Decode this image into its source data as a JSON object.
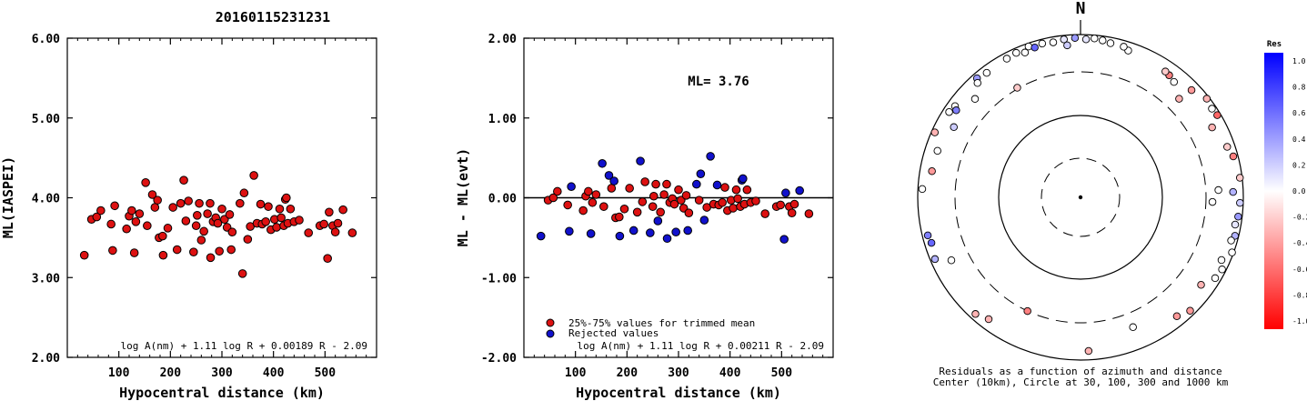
{
  "title": "20160115231231",
  "chart_data": [
    {
      "type": "scatter",
      "name": "ml-iaspei-vs-distance",
      "xlabel": "Hypocentral distance (km)",
      "ylabel": "ML(IASPEI)",
      "xlim": [
        0,
        600
      ],
      "ylim": [
        2.0,
        6.0
      ],
      "xticks": [
        "100",
        "200",
        "300",
        "400",
        "500"
      ],
      "xtick_values": [
        100,
        200,
        300,
        400,
        500
      ],
      "yticks": [
        "2.00",
        "3.00",
        "4.00",
        "5.00",
        "6.00"
      ],
      "ytick_values": [
        2.0,
        3.0,
        4.0,
        5.0,
        6.0
      ],
      "formula": "log A(nm) + 1.11 log R + 0.00189 R - 2.09",
      "marker_color": "#dd1111",
      "points": [
        [
          33,
          3.28
        ],
        [
          47,
          3.73
        ],
        [
          57,
          3.76
        ],
        [
          65,
          3.84
        ],
        [
          85,
          3.67
        ],
        [
          88,
          3.34
        ],
        [
          92,
          3.9
        ],
        [
          115,
          3.61
        ],
        [
          120,
          3.77
        ],
        [
          125,
          3.84
        ],
        [
          130,
          3.31
        ],
        [
          133,
          3.7
        ],
        [
          140,
          3.8
        ],
        [
          152,
          4.19
        ],
        [
          155,
          3.65
        ],
        [
          165,
          4.04
        ],
        [
          170,
          3.88
        ],
        [
          175,
          3.97
        ],
        [
          178,
          3.5
        ],
        [
          185,
          3.52
        ],
        [
          186,
          3.28
        ],
        [
          195,
          3.62
        ],
        [
          205,
          3.88
        ],
        [
          213,
          3.35
        ],
        [
          220,
          3.93
        ],
        [
          226,
          4.22
        ],
        [
          230,
          3.71
        ],
        [
          235,
          3.96
        ],
        [
          245,
          3.32
        ],
        [
          250,
          3.65
        ],
        [
          252,
          3.78
        ],
        [
          256,
          3.93
        ],
        [
          260,
          3.47
        ],
        [
          265,
          3.58
        ],
        [
          272,
          3.8
        ],
        [
          277,
          3.93
        ],
        [
          278,
          3.25
        ],
        [
          283,
          3.7
        ],
        [
          288,
          3.75
        ],
        [
          292,
          3.68
        ],
        [
          295,
          3.33
        ],
        [
          300,
          3.86
        ],
        [
          305,
          3.73
        ],
        [
          310,
          3.63
        ],
        [
          315,
          3.79
        ],
        [
          318,
          3.35
        ],
        [
          320,
          3.57
        ],
        [
          335,
          3.93
        ],
        [
          340,
          3.05
        ],
        [
          343,
          4.06
        ],
        [
          350,
          3.48
        ],
        [
          355,
          3.64
        ],
        [
          362,
          4.28
        ],
        [
          368,
          3.68
        ],
        [
          375,
          3.92
        ],
        [
          378,
          3.67
        ],
        [
          385,
          3.7
        ],
        [
          390,
          3.89
        ],
        [
          395,
          3.6
        ],
        [
          402,
          3.73
        ],
        [
          406,
          3.63
        ],
        [
          412,
          3.86
        ],
        [
          415,
          3.75
        ],
        [
          420,
          3.65
        ],
        [
          423,
          3.98
        ],
        [
          425,
          4.0
        ],
        [
          428,
          3.68
        ],
        [
          433,
          3.86
        ],
        [
          440,
          3.7
        ],
        [
          450,
          3.72
        ],
        [
          468,
          3.56
        ],
        [
          490,
          3.65
        ],
        [
          498,
          3.67
        ],
        [
          505,
          3.24
        ],
        [
          508,
          3.82
        ],
        [
          515,
          3.65
        ],
        [
          520,
          3.57
        ],
        [
          525,
          3.68
        ],
        [
          535,
          3.85
        ],
        [
          553,
          3.56
        ]
      ]
    },
    {
      "type": "scatter",
      "name": "ml-residual-vs-distance",
      "xlabel": "Hypocentral distance (km)",
      "ylabel": "ML - ML(evt)",
      "xlim": [
        0,
        600
      ],
      "ylim": [
        -2.0,
        2.0
      ],
      "xticks": [
        "100",
        "200",
        "300",
        "400",
        "500"
      ],
      "xtick_values": [
        100,
        200,
        300,
        400,
        500
      ],
      "yticks": [
        "-2.00",
        "-1.00",
        "0.00",
        "1.00",
        "2.00"
      ],
      "ytick_values": [
        -2.0,
        -1.0,
        0.0,
        1.0,
        2.0
      ],
      "annotation": "ML= 3.76",
      "formula": "log A(nm) + 1.11 log R + 0.00211 R - 2.09",
      "legend": [
        {
          "label": "25%-75% values for trimmed mean",
          "color": "#dd1111"
        },
        {
          "label": "Rejected values",
          "color": "#1111cc"
        }
      ],
      "series": [
        {
          "color": "#dd1111",
          "points": [
            [
              47,
              -0.03
            ],
            [
              57,
              0.0
            ],
            [
              65,
              0.08
            ],
            [
              85,
              -0.09
            ],
            [
              115,
              -0.16
            ],
            [
              120,
              0.02
            ],
            [
              125,
              0.08
            ],
            [
              133,
              -0.06
            ],
            [
              140,
              0.04
            ],
            [
              155,
              -0.11
            ],
            [
              170,
              0.12
            ],
            [
              178,
              -0.25
            ],
            [
              185,
              -0.24
            ],
            [
              195,
              -0.14
            ],
            [
              205,
              0.12
            ],
            [
              220,
              -0.18
            ],
            [
              230,
              -0.05
            ],
            [
              235,
              0.2
            ],
            [
              250,
              -0.11
            ],
            [
              252,
              0.02
            ],
            [
              256,
              0.17
            ],
            [
              265,
              -0.18
            ],
            [
              272,
              0.04
            ],
            [
              277,
              0.17
            ],
            [
              283,
              -0.06
            ],
            [
              288,
              -0.01
            ],
            [
              292,
              -0.08
            ],
            [
              300,
              0.1
            ],
            [
              305,
              -0.03
            ],
            [
              310,
              -0.13
            ],
            [
              315,
              0.03
            ],
            [
              320,
              -0.19
            ],
            [
              340,
              -0.03
            ],
            [
              355,
              -0.12
            ],
            [
              368,
              -0.08
            ],
            [
              378,
              -0.09
            ],
            [
              385,
              -0.06
            ],
            [
              390,
              0.13
            ],
            [
              395,
              -0.16
            ],
            [
              402,
              -0.03
            ],
            [
              406,
              -0.13
            ],
            [
              412,
              0.1
            ],
            [
              415,
              -0.01
            ],
            [
              420,
              -0.11
            ],
            [
              428,
              -0.08
            ],
            [
              433,
              0.1
            ],
            [
              440,
              -0.06
            ],
            [
              450,
              -0.04
            ],
            [
              468,
              -0.2
            ],
            [
              490,
              -0.11
            ],
            [
              498,
              -0.09
            ],
            [
              515,
              -0.11
            ],
            [
              520,
              -0.19
            ],
            [
              525,
              -0.08
            ],
            [
              553,
              -0.2
            ]
          ]
        },
        {
          "color": "#1111cc",
          "points": [
            [
              33,
              -0.48
            ],
            [
              88,
              -0.42
            ],
            [
              92,
              0.14
            ],
            [
              130,
              -0.45
            ],
            [
              152,
              0.43
            ],
            [
              165,
              0.28
            ],
            [
              175,
              0.21
            ],
            [
              186,
              -0.48
            ],
            [
              213,
              -0.41
            ],
            [
              226,
              0.46
            ],
            [
              245,
              -0.44
            ],
            [
              260,
              -0.29
            ],
            [
              278,
              -0.51
            ],
            [
              295,
              -0.43
            ],
            [
              318,
              -0.41
            ],
            [
              335,
              0.17
            ],
            [
              343,
              0.3
            ],
            [
              350,
              -0.28
            ],
            [
              362,
              0.52
            ],
            [
              375,
              0.16
            ],
            [
              423,
              0.22
            ],
            [
              425,
              0.24
            ],
            [
              505,
              -0.52
            ],
            [
              508,
              0.06
            ],
            [
              535,
              0.09
            ]
          ]
        }
      ]
    },
    {
      "type": "scatter",
      "name": "azimuth-distance-residuals",
      "top_label": "N",
      "caption_line1": "Residuals as a function of azimuth and distance",
      "caption_line2": "Center (10km), Circle at 30, 100, 300 and 1000 km",
      "rings_km": [
        10,
        30,
        100,
        300,
        1000
      ],
      "colorbar": {
        "title": "Res",
        "labels": [
          "1.0",
          "0.8",
          "0.6",
          "0.4",
          "0.2",
          "0.0",
          "-0.2",
          "-0.4",
          "-0.6",
          "-0.8",
          "-1.0"
        ],
        "top_color": "#0000ff",
        "mid_color": "#ffffff",
        "bottom_color": "#ff0000"
      },
      "stations": [
        {
          "az": 358,
          "dist": 900,
          "res": 0.4
        },
        {
          "az": 2,
          "dist": 860,
          "res": 0.1
        },
        {
          "az": 5,
          "dist": 900,
          "res": 0.0
        },
        {
          "az": 8,
          "dist": 870,
          "res": 0.0
        },
        {
          "az": 11,
          "dist": 830,
          "res": 0.0
        },
        {
          "az": 354,
          "dist": 880,
          "res": 0.1
        },
        {
          "az": 350,
          "dist": 840,
          "res": 0.0
        },
        {
          "az": 346,
          "dist": 870,
          "res": 0.0
        },
        {
          "az": 341,
          "dist": 900,
          "res": 0.0
        },
        {
          "az": 343,
          "dist": 820,
          "res": 0.6
        },
        {
          "az": 339,
          "dist": 780,
          "res": 0.0
        },
        {
          "az": 336,
          "dist": 860,
          "res": 0.0
        },
        {
          "az": 332,
          "dist": 830,
          "res": 0.0
        },
        {
          "az": 355,
          "dist": 720,
          "res": 0.2
        },
        {
          "az": 323,
          "dist": 800,
          "res": 0.0
        },
        {
          "az": 319,
          "dist": 850,
          "res": 0.4
        },
        {
          "az": 318,
          "dist": 750,
          "res": 0.0
        },
        {
          "az": 306,
          "dist": 780,
          "res": 0.0
        },
        {
          "az": 303,
          "dist": 820,
          "res": 0.0
        },
        {
          "az": 305,
          "dist": 700,
          "res": 0.5
        },
        {
          "az": 294,
          "dist": 900,
          "res": -0.3
        },
        {
          "az": 313,
          "dist": 550,
          "res": 0.0
        },
        {
          "az": 299,
          "dist": 560,
          "res": 0.2
        },
        {
          "az": 288,
          "dist": 670,
          "res": 0.0
        },
        {
          "az": 280,
          "dist": 680,
          "res": -0.4
        },
        {
          "az": 273,
          "dist": 870,
          "res": 0.0
        },
        {
          "az": 253,
          "dist": 800,
          "res": 0.6
        },
        {
          "az": 256,
          "dist": 840,
          "res": 0.5
        },
        {
          "az": 247,
          "dist": 860,
          "res": 0.3
        },
        {
          "az": 244,
          "dist": 540,
          "res": 0.0
        },
        {
          "az": 222,
          "dist": 830,
          "res": -0.3
        },
        {
          "az": 217,
          "dist": 720,
          "res": -0.3
        },
        {
          "az": 205,
          "dist": 300,
          "res": -0.5
        },
        {
          "az": 177,
          "dist": 750,
          "res": -0.3
        },
        {
          "az": 158,
          "dist": 480,
          "res": 0.0
        },
        {
          "az": 141,
          "dist": 730,
          "res": -0.4
        },
        {
          "az": 126,
          "dist": 640,
          "res": -0.3
        },
        {
          "az": 136,
          "dist": 850,
          "res": -0.4
        },
        {
          "az": 121,
          "dist": 830,
          "res": 0.0
        },
        {
          "az": 117,
          "dist": 880,
          "res": 0.0
        },
        {
          "az": 114,
          "dist": 760,
          "res": 0.0
        },
        {
          "az": 110,
          "dist": 950,
          "res": 0.0
        },
        {
          "az": 104,
          "dist": 890,
          "res": 0.3
        },
        {
          "az": 106,
          "dist": 820,
          "res": 0.0
        },
        {
          "az": 100,
          "dist": 830,
          "res": 0.1
        },
        {
          "az": 97,
          "dist": 880,
          "res": 0.4
        },
        {
          "az": 92,
          "dist": 900,
          "res": 0.2
        },
        {
          "az": 88,
          "dist": 720,
          "res": 0.3
        },
        {
          "az": 83,
          "dist": 930,
          "res": -0.2
        },
        {
          "az": 75,
          "dist": 860,
          "res": -0.5
        },
        {
          "az": 71,
          "dist": 780,
          "res": -0.2
        },
        {
          "az": 62,
          "dist": 640,
          "res": -0.3
        },
        {
          "az": 59,
          "dist": 900,
          "res": -0.6
        },
        {
          "az": 56,
          "dist": 870,
          "res": 0.0
        },
        {
          "az": 52,
          "dist": 920,
          "res": -0.3
        },
        {
          "az": 46,
          "dist": 760,
          "res": -0.4
        },
        {
          "az": 36,
          "dist": 680,
          "res": -0.5
        },
        {
          "az": 34,
          "dist": 700,
          "res": -0.2
        },
        {
          "az": 39,
          "dist": 630,
          "res": 0.0
        },
        {
          "az": 45,
          "dist": 470,
          "res": -0.3
        },
        {
          "az": 18,
          "dist": 760,
          "res": 0.0
        },
        {
          "az": 16,
          "dist": 820,
          "res": 0.0
        },
        {
          "az": 87,
          "dist": 450,
          "res": 0.0
        },
        {
          "az": 92,
          "dist": 370,
          "res": 0.0
        },
        {
          "az": 330,
          "dist": 310,
          "res": -0.2
        }
      ]
    }
  ]
}
